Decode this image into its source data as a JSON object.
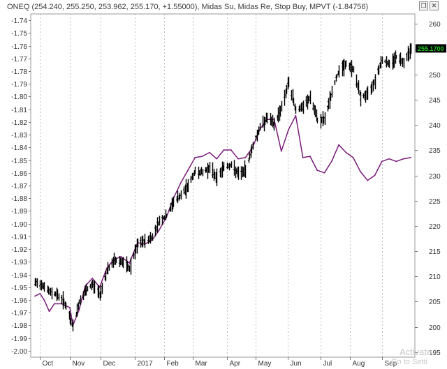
{
  "window": {
    "title": "ONEQ (254.240, 255.250, 253.962, 255.170, +1.55000), Midas Su, Midas Re, Stop Buy, MPVT (-1.84756)",
    "restore_label": "❒",
    "close_label": "✕"
  },
  "colors": {
    "price": "#000000",
    "mpvt": "#7a1b7a",
    "badge_bg": "#000000",
    "badge_fg": "#22cc22",
    "grid": "#bdbdbd"
  },
  "watermark": {
    "line1": "Activate",
    "line2": "Go to Setti"
  },
  "price_badge": "255.1700",
  "chart_data": {
    "type": "line",
    "title": "",
    "x": {
      "type": "date",
      "start": "2016-09-28",
      "end": "2017-09-29",
      "tick_labels": [
        "Oct",
        "Nov",
        "Dec",
        "2017",
        "Feb",
        "Mar",
        "Apr",
        "May",
        "Jun",
        "Jul",
        "Aug",
        "Sep"
      ],
      "tick_dates": [
        "2016-10-03",
        "2016-11-01",
        "2016-12-01",
        "2017-01-03",
        "2017-02-01",
        "2017-03-01",
        "2017-04-03",
        "2017-05-01",
        "2017-06-01",
        "2017-07-03",
        "2017-08-01",
        "2017-09-01"
      ]
    },
    "left_axis": {
      "label": "",
      "min": -2.005,
      "max": -1.735,
      "ticks": [
        -1.74,
        -1.75,
        -1.76,
        -1.77,
        -1.78,
        -1.79,
        -1.8,
        -1.81,
        -1.82,
        -1.83,
        -1.84,
        -1.85,
        -1.86,
        -1.87,
        -1.88,
        -1.89,
        -1.9,
        -1.91,
        -1.92,
        -1.93,
        -1.94,
        -1.95,
        -1.96,
        -1.97,
        -1.98,
        -1.99,
        -2.0
      ]
    },
    "right_axis": {
      "label": "",
      "min": 194,
      "max": 262,
      "ticks": [
        195,
        200,
        205,
        210,
        215,
        220,
        225,
        230,
        235,
        240,
        245,
        250,
        255,
        260
      ]
    },
    "grid": {
      "vertical": true,
      "style": "dashed"
    },
    "series": [
      {
        "name": "ONEQ",
        "axis": "right",
        "style": "ohlc",
        "points": [
          [
            "2016-09-28",
            208.7
          ],
          [
            "2016-10-05",
            208.4
          ],
          [
            "2016-10-12",
            206.9
          ],
          [
            "2016-10-19",
            206.5
          ],
          [
            "2016-10-26",
            205.0
          ],
          [
            "2016-11-02",
            201.0
          ],
          [
            "2016-11-04",
            200.0
          ],
          [
            "2016-11-10",
            205.0
          ],
          [
            "2016-11-16",
            207.0
          ],
          [
            "2016-11-23",
            208.4
          ],
          [
            "2016-11-30",
            206.5
          ],
          [
            "2016-12-07",
            211.0
          ],
          [
            "2016-12-14",
            213.2
          ],
          [
            "2016-12-21",
            213.0
          ],
          [
            "2016-12-29",
            211.5
          ],
          [
            "2017-01-06",
            216.5
          ],
          [
            "2017-01-13",
            217.0
          ],
          [
            "2017-01-20",
            217.8
          ],
          [
            "2017-01-27",
            221.0
          ],
          [
            "2017-02-03",
            222.0
          ],
          [
            "2017-02-10",
            224.8
          ],
          [
            "2017-02-17",
            226.0
          ],
          [
            "2017-02-24",
            228.0
          ],
          [
            "2017-03-03",
            230.8
          ],
          [
            "2017-03-10",
            230.6
          ],
          [
            "2017-03-17",
            231.5
          ],
          [
            "2017-03-24",
            229.5
          ],
          [
            "2017-03-31",
            231.8
          ],
          [
            "2017-04-07",
            232.0
          ],
          [
            "2017-04-14",
            230.2
          ],
          [
            "2017-04-21",
            231.0
          ],
          [
            "2017-04-28",
            236.0
          ],
          [
            "2017-05-05",
            239.5
          ],
          [
            "2017-05-12",
            241.5
          ],
          [
            "2017-05-19",
            240.0
          ],
          [
            "2017-05-26",
            243.5
          ],
          [
            "2017-06-02",
            248.5
          ],
          [
            "2017-06-09",
            243.0
          ],
          [
            "2017-06-16",
            243.5
          ],
          [
            "2017-06-23",
            245.5
          ],
          [
            "2017-06-30",
            241.0
          ],
          [
            "2017-07-07",
            241.0
          ],
          [
            "2017-07-14",
            246.5
          ],
          [
            "2017-07-21",
            251.0
          ],
          [
            "2017-07-28",
            252.0
          ],
          [
            "2017-08-04",
            251.0
          ],
          [
            "2017-08-11",
            245.5
          ],
          [
            "2017-08-18",
            246.0
          ],
          [
            "2017-08-25",
            249.0
          ],
          [
            "2017-09-01",
            253.0
          ],
          [
            "2017-09-08",
            252.0
          ],
          [
            "2017-09-15",
            253.5
          ],
          [
            "2017-09-22",
            252.5
          ],
          [
            "2017-09-29",
            255.17
          ]
        ]
      },
      {
        "name": "MPVT",
        "axis": "left",
        "style": "line",
        "points": [
          [
            "2016-09-28",
            -1.957
          ],
          [
            "2016-10-03",
            -1.955
          ],
          [
            "2016-10-07",
            -1.96
          ],
          [
            "2016-10-12",
            -1.969
          ],
          [
            "2016-10-17",
            -1.963
          ],
          [
            "2016-10-24",
            -1.963
          ],
          [
            "2016-11-01",
            -1.966
          ],
          [
            "2016-11-04",
            -1.98
          ],
          [
            "2016-11-10",
            -1.968
          ],
          [
            "2016-11-16",
            -1.949
          ],
          [
            "2016-11-23",
            -1.943
          ],
          [
            "2016-11-30",
            -1.95
          ],
          [
            "2016-12-07",
            -1.935
          ],
          [
            "2016-12-14",
            -1.928
          ],
          [
            "2016-12-21",
            -1.926
          ],
          [
            "2016-12-29",
            -1.931
          ],
          [
            "2017-01-06",
            -1.915
          ],
          [
            "2017-01-13",
            -1.916
          ],
          [
            "2017-01-20",
            -1.913
          ],
          [
            "2017-01-27",
            -1.905
          ],
          [
            "2017-02-03",
            -1.895
          ],
          [
            "2017-02-10",
            -1.88
          ],
          [
            "2017-02-17",
            -1.868
          ],
          [
            "2017-02-24",
            -1.858
          ],
          [
            "2017-03-03",
            -1.848
          ],
          [
            "2017-03-10",
            -1.847
          ],
          [
            "2017-03-17",
            -1.844
          ],
          [
            "2017-03-24",
            -1.849
          ],
          [
            "2017-03-31",
            -1.842
          ],
          [
            "2017-04-07",
            -1.842
          ],
          [
            "2017-04-14",
            -1.849
          ],
          [
            "2017-04-21",
            -1.848
          ],
          [
            "2017-04-28",
            -1.84
          ],
          [
            "2017-05-05",
            -1.826
          ],
          [
            "2017-05-12",
            -1.818
          ],
          [
            "2017-05-19",
            -1.818
          ],
          [
            "2017-05-26",
            -1.843
          ],
          [
            "2017-06-02",
            -1.826
          ],
          [
            "2017-06-09",
            -1.815
          ],
          [
            "2017-06-16",
            -1.848
          ],
          [
            "2017-06-23",
            -1.847
          ],
          [
            "2017-06-30",
            -1.858
          ],
          [
            "2017-07-07",
            -1.86
          ],
          [
            "2017-07-14",
            -1.851
          ],
          [
            "2017-07-21",
            -1.838
          ],
          [
            "2017-07-28",
            -1.844
          ],
          [
            "2017-08-04",
            -1.848
          ],
          [
            "2017-08-11",
            -1.859
          ],
          [
            "2017-08-18",
            -1.866
          ],
          [
            "2017-08-25",
            -1.862
          ],
          [
            "2017-09-01",
            -1.851
          ],
          [
            "2017-09-08",
            -1.849
          ],
          [
            "2017-09-15",
            -1.851
          ],
          [
            "2017-09-22",
            -1.849
          ],
          [
            "2017-09-29",
            -1.848
          ]
        ]
      }
    ]
  }
}
